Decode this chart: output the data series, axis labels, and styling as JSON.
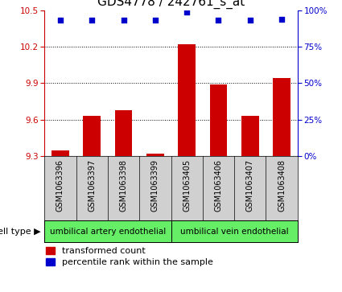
{
  "title": "GDS4778 / 242761_s_at",
  "samples": [
    "GSM1063396",
    "GSM1063397",
    "GSM1063398",
    "GSM1063399",
    "GSM1063405",
    "GSM1063406",
    "GSM1063407",
    "GSM1063408"
  ],
  "bar_values": [
    9.35,
    9.63,
    9.68,
    9.32,
    10.22,
    9.89,
    9.63,
    9.94
  ],
  "percentile_values": [
    93,
    93,
    93,
    93,
    99,
    93,
    93,
    94
  ],
  "ylim_left": [
    9.3,
    10.5
  ],
  "ylim_right": [
    0,
    100
  ],
  "yticks_left": [
    9.3,
    9.6,
    9.9,
    10.2,
    10.5
  ],
  "yticks_right": [
    0,
    25,
    50,
    75,
    100
  ],
  "bar_color": "#cc0000",
  "dot_color": "#0000cc",
  "grid_color": "#000000",
  "group1_label": "umbilical artery endothelial",
  "group2_label": "umbilical vein endothelial",
  "group_color": "#66ee66",
  "cell_type_label": "cell type",
  "legend_bar_label": "transformed count",
  "legend_dot_label": "percentile rank within the sample",
  "title_fontsize": 11,
  "tick_fontsize": 7.5,
  "legend_fontsize": 8,
  "bar_width": 0.55,
  "bg_gray": "#d0d0d0"
}
